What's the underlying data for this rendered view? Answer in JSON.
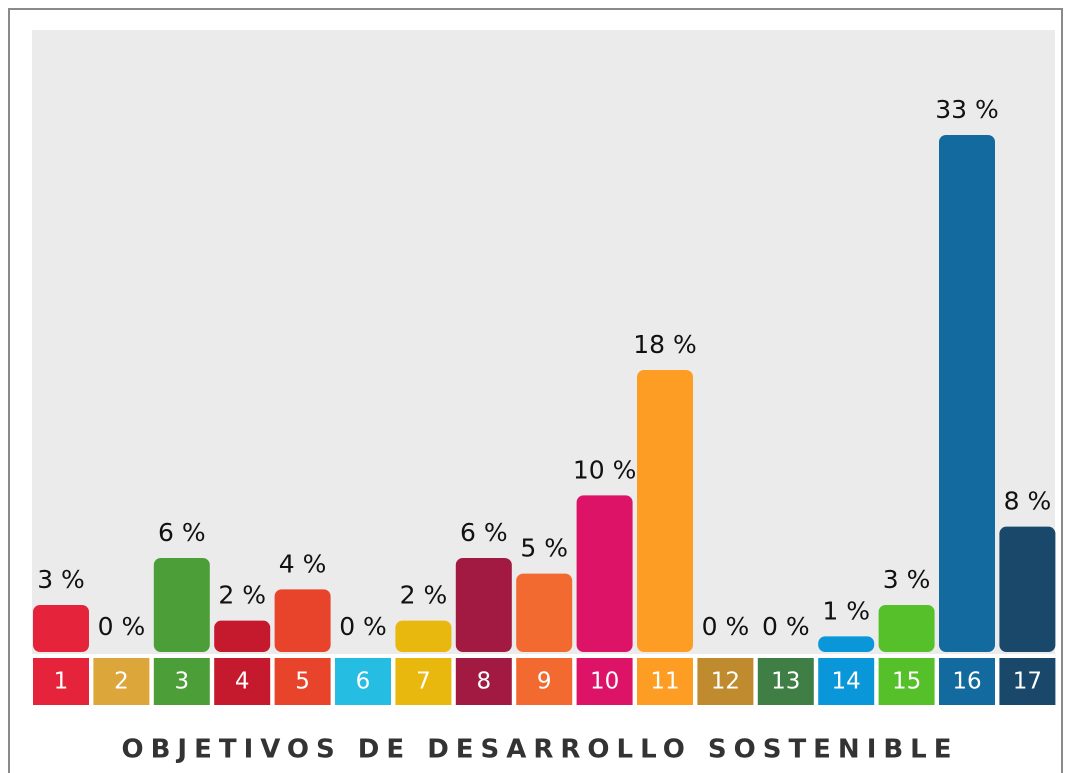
{
  "chart_data": {
    "type": "bar",
    "title": "OBJETIVOS DE DESARROLLO SOSTENIBLE",
    "categories": [
      "1",
      "2",
      "3",
      "4",
      "5",
      "6",
      "7",
      "8",
      "9",
      "10",
      "11",
      "12",
      "13",
      "14",
      "15",
      "16",
      "17"
    ],
    "values": [
      3,
      0,
      6,
      2,
      4,
      0,
      2,
      6,
      5,
      10,
      18,
      0,
      0,
      1,
      3,
      33,
      8
    ],
    "value_labels": [
      "3 %",
      "0 %",
      "6 %",
      "2 %",
      "4 %",
      "0 %",
      "2 %",
      "6 %",
      "5 %",
      "10 %",
      "18 %",
      "0 %",
      "0 %",
      "1 %",
      "3 %",
      "33 %",
      "8 %"
    ],
    "colors": [
      "#e5243b",
      "#dda63a",
      "#4c9f38",
      "#c5192d",
      "#e8432b",
      "#26bde2",
      "#e9b80f",
      "#a21942",
      "#f26a30",
      "#dd1367",
      "#fd9d24",
      "#bf8b2e",
      "#3f7e44",
      "#0a97d9",
      "#56c02b",
      "#136a9e",
      "#19486a"
    ]
  }
}
